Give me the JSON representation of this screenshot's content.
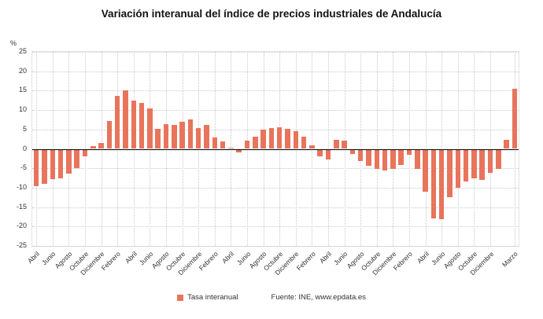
{
  "title": "Variación interanual del índice de precios industriales de Andalucía",
  "y_axis_unit": "%",
  "legend": {
    "series_label": "Tasa interanual"
  },
  "source": "Fuente: INE, www.epdata.es",
  "colors": {
    "bar": "#e8745c",
    "grid": "#c9c9c9",
    "zero_line": "#000000",
    "text": "#333333"
  },
  "chart_data": {
    "type": "bar",
    "title": "Variación interanual del índice de precios industriales de Andalucía",
    "ylabel": "%",
    "ylim": [
      -25,
      25
    ],
    "y_ticks": [
      25,
      20,
      15,
      10,
      5,
      0,
      -5,
      -10,
      -15,
      -20,
      -25
    ],
    "grid": "dotted",
    "legend_position": "bottom",
    "series_name": "Tasa interanual",
    "x_tick_positions": [
      0,
      2,
      4,
      6,
      8,
      10,
      12,
      14,
      16,
      18,
      20,
      22,
      24,
      26,
      28,
      30,
      32,
      34,
      36,
      38,
      40,
      42,
      44,
      46,
      48,
      50,
      52,
      54,
      56,
      59
    ],
    "x_tick_labels": [
      "Abril",
      "Junio",
      "Agosto",
      "Octubre",
      "Diciembre",
      "Febrero",
      "Abril",
      "Junio",
      "Agosto",
      "Octubre",
      "Diciembre",
      "Febrero",
      "Abril",
      "Junio",
      "Agosto",
      "Octubre",
      "Diciembre",
      "Febrero",
      "Abril",
      "Junio",
      "Agosto",
      "Octubre",
      "Diciembre",
      "Febrero",
      "Abril",
      "Junio",
      "Agosto",
      "Octubre",
      "Diciembre",
      "Marzo"
    ],
    "values": [
      -9.6,
      -9.0,
      -7.7,
      -7.5,
      -6.4,
      -5.0,
      -2.0,
      0.7,
      1.6,
      7.1,
      13.7,
      15.1,
      12.4,
      11.8,
      10.4,
      5.1,
      6.4,
      6.2,
      7.0,
      7.5,
      5.3,
      6.2,
      3.0,
      1.9,
      0.4,
      -1.0,
      2.1,
      3.2,
      4.9,
      5.3,
      5.6,
      5.1,
      4.6,
      3.1,
      1.0,
      -1.9,
      -2.7,
      2.3,
      2.2,
      -1.3,
      -3.2,
      -4.3,
      -5.1,
      -5.6,
      -5.2,
      -4.1,
      -1.6,
      -5.2,
      -11.0,
      -18.0,
      -18.2,
      -12.4,
      -10.1,
      -8.3,
      -7.6,
      -8.0,
      -6.2,
      -5.1,
      2.3,
      15.4
    ]
  }
}
